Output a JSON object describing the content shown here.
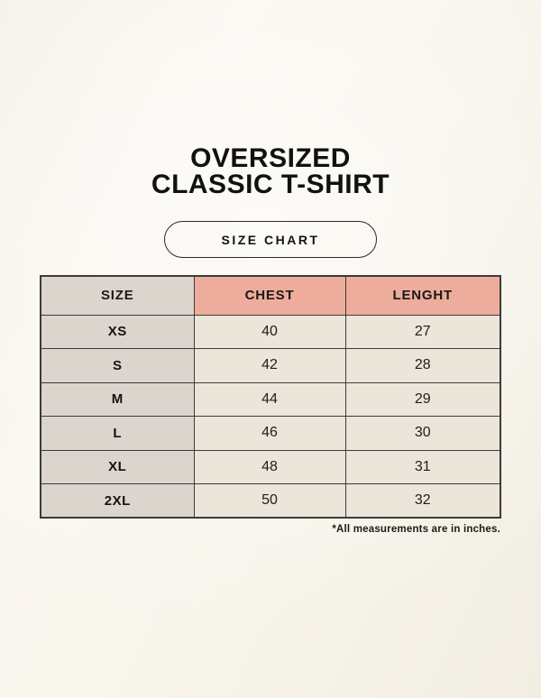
{
  "header": {
    "title_line1": "OVERSIZED",
    "title_line2": "CLASSIC T-SHIRT",
    "badge_label": "SIZE CHART"
  },
  "chart_data": {
    "type": "table",
    "title": "OVERSIZED CLASSIC T-SHIRT SIZE CHART",
    "columns": [
      "SIZE",
      "CHEST",
      "LENGHT"
    ],
    "rows": [
      [
        "XS",
        "40",
        "27"
      ],
      [
        "S",
        "42",
        "28"
      ],
      [
        "M",
        "44",
        "29"
      ],
      [
        "L",
        "46",
        "30"
      ],
      [
        "XL",
        "48",
        "31"
      ],
      [
        "2XL",
        "50",
        "32"
      ]
    ]
  },
  "footer": {
    "note": "*All measurements are in inches."
  },
  "colors": {
    "background": "#f8f5ed",
    "table_border": "#3e3a36",
    "size_column_bg": "#dcd5ce",
    "header_accent_bg": "#eead9c",
    "value_cell_bg": "#ebe5da",
    "text": "#1b1916"
  }
}
